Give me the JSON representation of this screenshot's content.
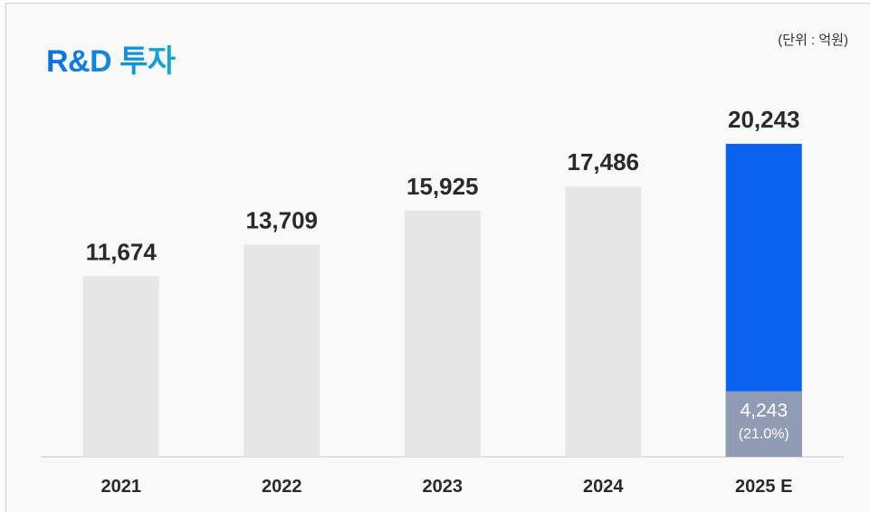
{
  "header": {
    "title": "R&D 투자",
    "unit": "(단위 : 억원)"
  },
  "colors": {
    "bar_default": "#e6e6e6",
    "bar_highlight": "#0a63f0",
    "bar_highlight_part": "#8f9cb3",
    "baseline": "#c8c8c8"
  },
  "chart_data": {
    "type": "bar",
    "categories": [
      "2021",
      "2022",
      "2023",
      "2024",
      "2025 E"
    ],
    "values": [
      11674,
      13709,
      15925,
      17486,
      20243
    ],
    "value_labels": [
      "11,674",
      "13,709",
      "15,925",
      "17,486",
      "20,243"
    ],
    "ylim": [
      0,
      20243
    ],
    "grid": false,
    "highlight_index": 4,
    "highlight_part": {
      "value": 4243,
      "label": "4,243",
      "share_label": "(21.0%)"
    }
  }
}
